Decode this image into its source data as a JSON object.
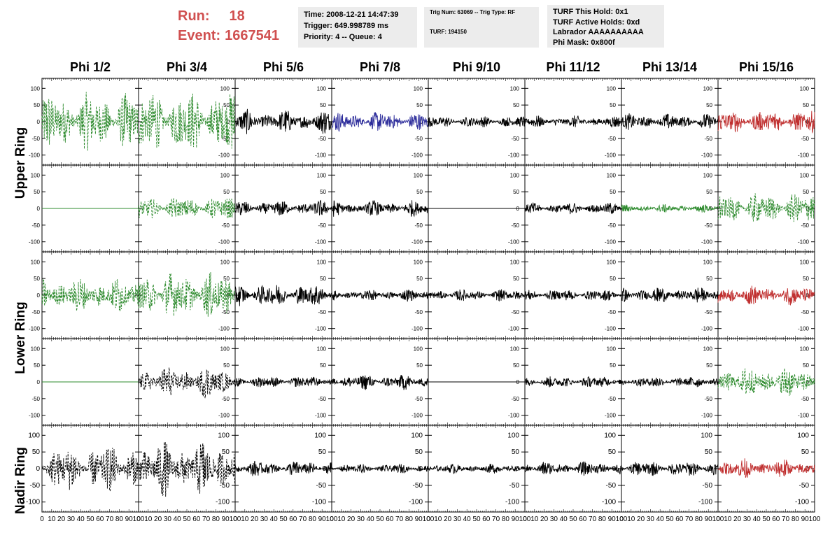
{
  "header": {
    "run_label": "Run:",
    "run_value": "18",
    "event_label": "Event:",
    "event_value": "1667541",
    "accent_color": "#d05050"
  },
  "info_boxes": {
    "time": [
      "Time: 2008-12-21 14:47:39",
      "Trigger: 649.998789 ms",
      "Priority: 4 -- Queue: 4"
    ],
    "trig": [
      "Trig Num: 63069 -- Trig Type: RF",
      "",
      "TURF: 194150"
    ],
    "turf": [
      "TURF This Hold: 0x1",
      "TURF Active Holds: 0xd",
      "Labrador AAAAAAAAAA",
      "Phi Mask: 0x800f"
    ]
  },
  "columns": [
    "Phi 1/2",
    "Phi 3/4",
    "Phi 5/6",
    "Phi 7/8",
    "Phi 9/10",
    "Phi 11/12",
    "Phi 13/14",
    "Phi 15/16"
  ],
  "row_labels": [
    "Upper Ring",
    "Lower Ring",
    "Nadir Ring"
  ],
  "colors": {
    "black": "#000000",
    "green": "#2e8b2e",
    "blue": "#2b2b9a",
    "red": "#c03030"
  },
  "chart_data": {
    "type": "line",
    "xlim": [
      0,
      100
    ],
    "ylim": [
      -130,
      130
    ],
    "x_ticks": [
      "0",
      "10",
      "20",
      "30",
      "40",
      "50",
      "60",
      "70",
      "80",
      "90",
      "100"
    ],
    "y_ticks": [
      "100",
      "50",
      "0",
      "-50",
      "-100"
    ],
    "panels": [
      [
        "green-dash",
        "green-dash",
        "black",
        "blue",
        "black",
        "black",
        "black",
        "red"
      ],
      [
        "green-flat",
        "green-dash",
        "black",
        "black",
        "black-flat",
        "black",
        "green",
        "green-dash"
      ],
      [
        "green-dash",
        "green-dash",
        "black",
        "black",
        "black",
        "black",
        "black",
        "red"
      ],
      [
        "green-flat",
        "black-dash",
        "black",
        "black",
        "black-flat",
        "black",
        "black",
        "green-dash"
      ],
      [
        "black-dash",
        "black-dash",
        "black",
        "black",
        "black",
        "black",
        "black",
        "red"
      ]
    ],
    "amplitudes": [
      [
        75,
        80,
        30,
        25,
        15,
        15,
        20,
        30
      ],
      [
        0,
        30,
        20,
        20,
        0,
        15,
        10,
        40
      ],
      [
        45,
        60,
        30,
        15,
        15,
        15,
        20,
        25
      ],
      [
        0,
        40,
        15,
        20,
        0,
        15,
        15,
        40
      ],
      [
        60,
        70,
        20,
        12,
        12,
        18,
        20,
        25
      ]
    ]
  }
}
